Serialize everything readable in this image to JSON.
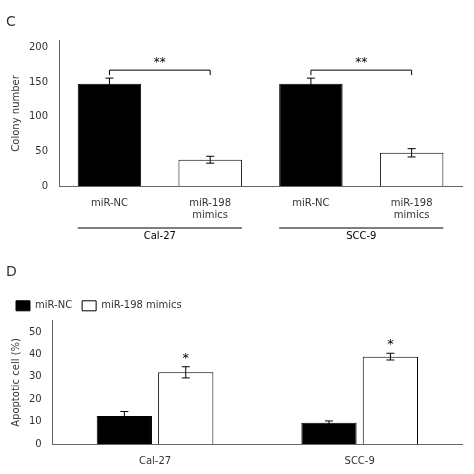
{
  "chart_data": [
    {
      "type": "bar",
      "title": "C",
      "categories": [
        "miR-NC",
        "miR-198\nmimics",
        "miR-NC",
        "miR-198\nmimics"
      ],
      "values": [
        148,
        38,
        148,
        48
      ],
      "errors": [
        8,
        5,
        8,
        6
      ],
      "colors": [
        "black",
        "white",
        "black",
        "white"
      ],
      "y_label": "Colony number",
      "ylim": [
        0,
        210
      ],
      "yticks": [
        0,
        50,
        100,
        150,
        200
      ],
      "grid": false,
      "group_labels": [
        "Cal-27",
        "SCC-9"
      ],
      "annotations": [
        {
          "text": "**",
          "group": "Cal-27"
        },
        {
          "text": "**",
          "group": "SCC-9"
        }
      ]
    },
    {
      "type": "bar",
      "title": "D",
      "categories": [
        "Cal-27",
        "SCC-9"
      ],
      "series": [
        {
          "name": "miR-NC",
          "color": "black",
          "values": [
            12.5,
            9.5
          ],
          "errors": [
            2.0,
            0.8
          ]
        },
        {
          "name": "miR-198 mimics",
          "color": "white",
          "values": [
            32,
            39
          ],
          "errors": [
            2.5,
            1.5
          ]
        }
      ],
      "y_label": "Apoptotic cell (%)",
      "ylim": [
        0,
        55
      ],
      "yticks": [
        0,
        10,
        20,
        30,
        40,
        50
      ],
      "grid": false,
      "legend": "upper left",
      "annotations": [
        {
          "text": "*",
          "series": "miR-198 mimics",
          "category": "Cal-27"
        },
        {
          "text": "*",
          "series": "miR-198 mimics",
          "category": "SCC-9"
        }
      ]
    }
  ]
}
